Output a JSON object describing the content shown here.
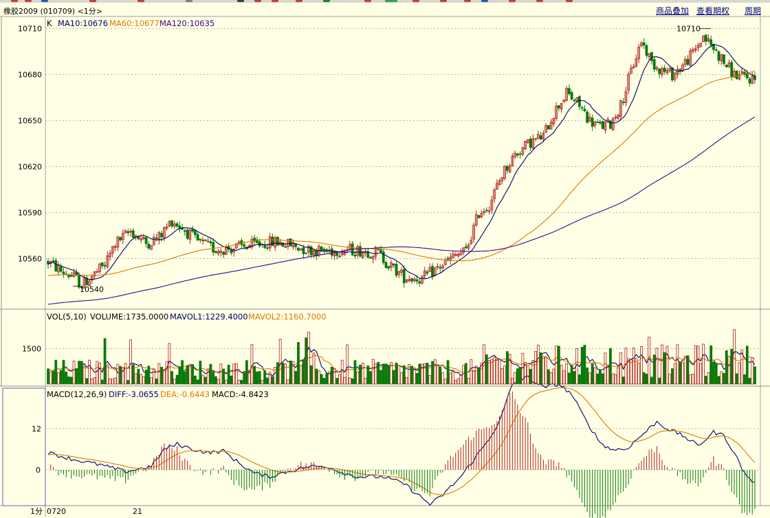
{
  "window": {
    "instrument_title": "橡胶2009 (010709) <1分>",
    "links": [
      "商品叠加",
      "查看期权",
      "周期"
    ]
  },
  "colors": {
    "background": "#FFFFE6",
    "up": "#B01E1E",
    "down": "#0A7A0A",
    "ma10": "#000066",
    "ma60": "#E07800",
    "ma120": "#3A0A80",
    "diff": "#000066",
    "dea": "#E07800"
  },
  "price_panel": {
    "label": "K",
    "legend": [
      {
        "text": "MA10:10676",
        "color": "#000066"
      },
      {
        "text": "MA60:10677",
        "color": "#E07800"
      },
      {
        "text": "MA120:10635",
        "color": "#3A0A80"
      }
    ],
    "ticks": [
      10560,
      10590,
      10620,
      10650,
      10680,
      10710
    ],
    "y_range": [
      10528,
      10717
    ],
    "high_label": "10710",
    "low_label": "10540"
  },
  "volume_panel": {
    "legend": [
      {
        "text": "VOL(5,10)",
        "color": "#000000"
      },
      {
        "text": "VOLUME:1735.0000",
        "color": "#000000"
      },
      {
        "text": "MAVOL1:1229.4000",
        "color": "#000066"
      },
      {
        "text": "MAVOL2:1160.7000",
        "color": "#E07800"
      }
    ],
    "ticks": [
      1500
    ],
    "y_max": 2600
  },
  "macd_panel": {
    "legend": [
      {
        "text": "MACD(12,26,9)",
        "color": "#000000"
      },
      {
        "text": "DIFF:-3.0655",
        "color": "#000066"
      },
      {
        "text": "DEA:-0.6443",
        "color": "#E07800"
      },
      {
        "text": "MACD:-4.8423",
        "color": "#000000"
      }
    ],
    "ticks": [
      0,
      12
    ]
  },
  "time_axis": {
    "period_label": "1分",
    "labels": [
      "0720",
      "21"
    ]
  },
  "chart_data": {
    "type": "candlestick",
    "price_keypoints": [
      [
        0,
        10558
      ],
      [
        5,
        10552
      ],
      [
        10,
        10548
      ],
      [
        13,
        10543
      ],
      [
        18,
        10550
      ],
      [
        22,
        10556
      ],
      [
        26,
        10570
      ],
      [
        32,
        10578
      ],
      [
        38,
        10570
      ],
      [
        43,
        10574
      ],
      [
        48,
        10585
      ],
      [
        52,
        10580
      ],
      [
        58,
        10571
      ],
      [
        65,
        10566
      ],
      [
        72,
        10567
      ],
      [
        80,
        10569
      ],
      [
        88,
        10571
      ],
      [
        94,
        10569
      ],
      [
        100,
        10566
      ],
      [
        108,
        10565
      ],
      [
        116,
        10566
      ],
      [
        122,
        10565
      ],
      [
        128,
        10564
      ],
      [
        132,
        10556
      ],
      [
        138,
        10548
      ],
      [
        145,
        10547
      ],
      [
        152,
        10555
      ],
      [
        158,
        10562
      ],
      [
        162,
        10565
      ],
      [
        167,
        10590
      ],
      [
        171,
        10595
      ],
      [
        176,
        10615
      ],
      [
        181,
        10628
      ],
      [
        187,
        10636
      ],
      [
        192,
        10640
      ],
      [
        196,
        10655
      ],
      [
        201,
        10668
      ],
      [
        206,
        10660
      ],
      [
        210,
        10650
      ],
      [
        214,
        10646
      ],
      [
        218,
        10648
      ],
      [
        222,
        10660
      ],
      [
        226,
        10682
      ],
      [
        230,
        10702
      ],
      [
        234,
        10688
      ],
      [
        238,
        10683
      ],
      [
        242,
        10680
      ],
      [
        246,
        10686
      ],
      [
        250,
        10694
      ],
      [
        254,
        10705
      ],
      [
        258,
        10697
      ],
      [
        262,
        10688
      ],
      [
        266,
        10680
      ],
      [
        270,
        10678
      ],
      [
        274,
        10677
      ]
    ],
    "macd_keypoints": [
      [
        0,
        5
      ],
      [
        10,
        3
      ],
      [
        20,
        1.5
      ],
      [
        30,
        -0.5
      ],
      [
        40,
        1
      ],
      [
        45,
        6
      ],
      [
        50,
        7.5
      ],
      [
        56,
        6
      ],
      [
        62,
        5
      ],
      [
        68,
        5.5
      ],
      [
        74,
        2
      ],
      [
        80,
        -1
      ],
      [
        86,
        -2
      ],
      [
        95,
        0
      ],
      [
        102,
        1
      ],
      [
        108,
        1
      ],
      [
        115,
        -1
      ],
      [
        120,
        -2
      ],
      [
        130,
        -2
      ],
      [
        138,
        -4
      ],
      [
        143,
        -7
      ],
      [
        148,
        -10
      ],
      [
        152,
        -8
      ],
      [
        160,
        -2
      ],
      [
        165,
        3
      ],
      [
        170,
        8
      ],
      [
        175,
        14
      ],
      [
        180,
        25
      ],
      [
        186,
        27
      ],
      [
        192,
        24
      ],
      [
        198,
        25
      ],
      [
        203,
        22
      ],
      [
        208,
        15
      ],
      [
        214,
        8
      ],
      [
        218,
        6
      ],
      [
        224,
        6
      ],
      [
        230,
        10
      ],
      [
        236,
        14
      ],
      [
        240,
        12
      ],
      [
        246,
        10
      ],
      [
        252,
        7
      ],
      [
        258,
        11
      ],
      [
        262,
        10
      ],
      [
        266,
        5
      ],
      [
        270,
        -1
      ],
      [
        274,
        -4
      ]
    ],
    "x_count": 275
  }
}
